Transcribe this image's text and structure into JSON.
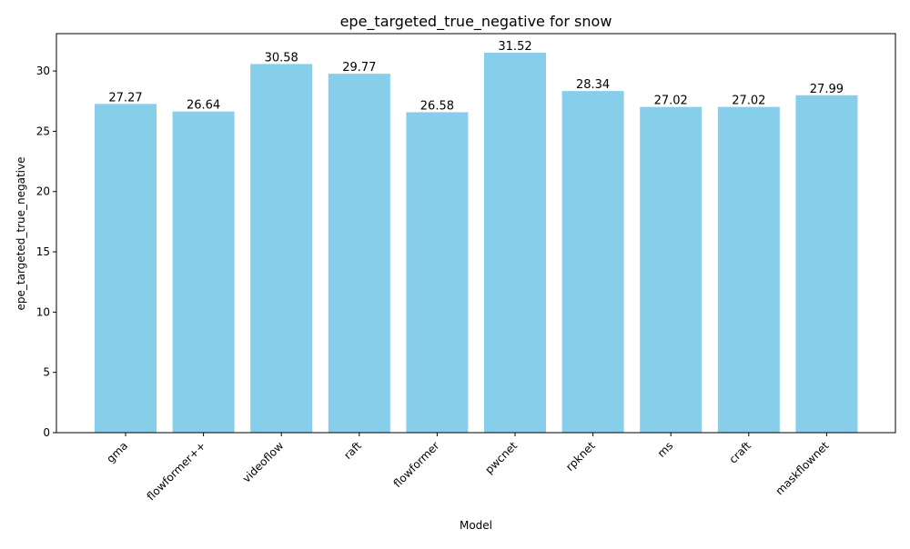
{
  "chart_data": {
    "type": "bar",
    "title": "epe_targeted_true_negative for snow",
    "xlabel": "Model",
    "ylabel": "epe_targeted_true_negative",
    "categories": [
      "gma",
      "flowformer++",
      "videoflow",
      "raft",
      "flowformer",
      "pwcnet",
      "rpknet",
      "ms",
      "craft",
      "maskflownet"
    ],
    "values": [
      27.27,
      26.64,
      30.58,
      29.77,
      26.58,
      31.52,
      28.34,
      27.02,
      27.02,
      27.99
    ],
    "value_labels": [
      "27.27",
      "26.64",
      "30.58",
      "29.77",
      "26.58",
      "31.52",
      "28.34",
      "27.02",
      "27.02",
      "27.99"
    ],
    "ylim": [
      0,
      33.1
    ],
    "yticks": [
      0,
      5,
      10,
      15,
      20,
      25,
      30
    ],
    "grid": false,
    "legend": "none",
    "bar_color": "#87ceeb",
    "x_tick_rotation_deg": -45
  }
}
